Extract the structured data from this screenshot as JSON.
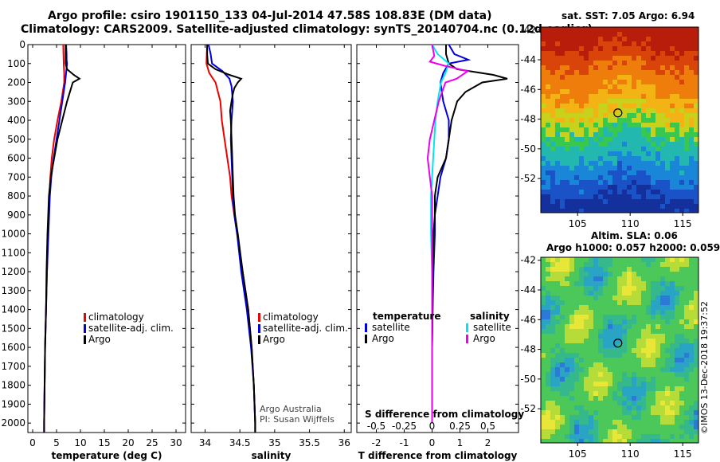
{
  "title_line1": "Argo profile: csiro 1901150_133 04-Jul-2014 47.58S 108.83E (DM data)",
  "title_line2": "Climatology: CARS2009. Satellite-adjusted climatology: synTS_20140704.nc (0.12d earlier)",
  "sst_title": "sat. SST: 7.05 Argo: 6.94",
  "sla_title": "Altim. SLA: 0.06",
  "sla_subtitle": "Argo h1000: 0.057 h2000: 0.059",
  "credit": "©IMOS 13-Dec-2018 19:37:52",
  "colors": {
    "climatology": "#ee0000",
    "satellite": "#0000dd",
    "argo": "#000000",
    "s_satellite": "#00e5ee",
    "s_argo": "#ee00ee"
  },
  "chart_data": [
    {
      "type": "line",
      "id": "temperature",
      "xlabel": "temperature (deg C)",
      "ylabel": "",
      "xlim": [
        -1,
        32
      ],
      "ylim": [
        2050,
        0
      ],
      "xticks": [
        0,
        5,
        10,
        15,
        20,
        25,
        30
      ],
      "yticks": [
        0,
        100,
        200,
        300,
        400,
        500,
        600,
        700,
        800,
        900,
        1000,
        1100,
        1200,
        1300,
        1400,
        1500,
        1600,
        1700,
        1800,
        1900,
        2000
      ],
      "legend": [
        "climatology",
        "satellite-adj. clim.",
        "Argo"
      ],
      "legend_position": "lower-right",
      "grid": false,
      "series": [
        {
          "name": "climatology",
          "color": "climatology",
          "depth": [
            0,
            100,
            150,
            200,
            300,
            400,
            500,
            600,
            700,
            800,
            1000,
            1200,
            1400,
            1600,
            1800,
            2000,
            2050
          ],
          "values": [
            6.4,
            6.5,
            6.6,
            6.6,
            6.0,
            5.2,
            4.5,
            4.0,
            3.7,
            3.5,
            3.2,
            3.0,
            2.8,
            2.6,
            2.5,
            2.4,
            2.4
          ]
        },
        {
          "name": "satellite-adj. clim.",
          "color": "satellite",
          "depth": [
            0,
            50,
            80,
            100,
            150,
            200,
            300,
            400,
            500,
            600,
            700,
            800,
            1000,
            1200,
            1400,
            1600,
            1800,
            2000,
            2050
          ],
          "values": [
            7.0,
            7.1,
            7.1,
            7.2,
            7.0,
            6.8,
            6.2,
            5.6,
            5.0,
            4.4,
            3.9,
            3.6,
            3.3,
            3.0,
            2.8,
            2.6,
            2.5,
            2.4,
            2.4
          ]
        },
        {
          "name": "Argo",
          "color": "argo",
          "depth": [
            0,
            50,
            100,
            130,
            160,
            180,
            200,
            250,
            300,
            400,
            500,
            600,
            700,
            800,
            1000,
            1200,
            1400,
            1600,
            1800,
            2000,
            2050
          ],
          "values": [
            6.9,
            6.9,
            6.9,
            7.2,
            8.6,
            9.8,
            8.4,
            7.8,
            7.2,
            6.2,
            5.2,
            4.5,
            3.8,
            3.4,
            3.1,
            2.9,
            2.8,
            2.6,
            2.5,
            2.4,
            2.4
          ]
        }
      ]
    },
    {
      "type": "line",
      "id": "salinity",
      "xlabel": "salinity",
      "ylabel": "",
      "xlim": [
        33.8,
        36.1
      ],
      "ylim": [
        2050,
        0
      ],
      "xticks": [
        34,
        34.5,
        35,
        35.5,
        36
      ],
      "legend": [
        "climatology",
        "satellite-adj. clim.",
        "Argo"
      ],
      "legend_position": "lower-right",
      "annotation": [
        "Argo Australia",
        "PI: Susan Wijffels"
      ],
      "grid": false,
      "series": [
        {
          "name": "climatology",
          "color": "climatology",
          "depth": [
            0,
            100,
            150,
            200,
            300,
            400,
            500,
            600,
            700,
            800,
            900,
            1000,
            1200,
            1400,
            1600,
            1800,
            2000,
            2050
          ],
          "values": [
            34.03,
            34.02,
            34.06,
            34.15,
            34.22,
            34.24,
            34.28,
            34.32,
            34.36,
            34.38,
            34.42,
            34.46,
            34.54,
            34.62,
            34.67,
            34.7,
            34.72,
            34.72
          ]
        },
        {
          "name": "satellite-adj. clim.",
          "color": "satellite",
          "depth": [
            0,
            50,
            100,
            140,
            180,
            220,
            300,
            400,
            500,
            600,
            700,
            800,
            900,
            1000,
            1200,
            1400,
            1600,
            1800,
            2000,
            2050
          ],
          "values": [
            34.05,
            34.08,
            34.1,
            34.25,
            34.35,
            34.38,
            34.4,
            34.38,
            34.37,
            34.38,
            34.39,
            34.4,
            34.42,
            34.46,
            34.52,
            34.6,
            34.66,
            34.7,
            34.72,
            34.72
          ]
        },
        {
          "name": "Argo",
          "color": "argo",
          "depth": [
            0,
            50,
            100,
            130,
            160,
            180,
            200,
            230,
            260,
            300,
            350,
            400,
            500,
            600,
            700,
            800,
            900,
            1000,
            1200,
            1400,
            1600,
            1800,
            2000,
            2050
          ],
          "values": [
            34.03,
            34.03,
            34.04,
            34.15,
            34.35,
            34.52,
            34.47,
            34.42,
            34.4,
            34.38,
            34.36,
            34.37,
            34.38,
            34.39,
            34.4,
            34.41,
            34.43,
            34.47,
            34.54,
            34.62,
            34.67,
            34.7,
            34.72,
            34.72
          ]
        }
      ]
    },
    {
      "type": "line",
      "id": "difference",
      "xlabel": "T difference from climatology",
      "ylabel": "",
      "xlim": [
        -2.7,
        3.1
      ],
      "ylim": [
        2050,
        0
      ],
      "xticks": [
        -2,
        -1,
        0,
        1,
        2
      ],
      "secondary_xlabel": "S difference from climatology",
      "secondary_xticks": [
        "-0.5",
        "-0.25",
        "0",
        "0.25",
        "0.5"
      ],
      "legend_temperature": {
        "header": "temperature",
        "items": [
          "satellite",
          "Argo"
        ]
      },
      "legend_salinity": {
        "header": "salinity",
        "items": [
          "satellite",
          "Argo"
        ]
      },
      "grid": false,
      "series": [
        {
          "name": "T satellite",
          "color": "satellite",
          "depth": [
            0,
            50,
            80,
            100,
            150,
            200,
            300,
            400,
            500,
            600,
            700,
            800,
            900,
            1000,
            1200,
            1400,
            1600,
            1800,
            2000
          ],
          "values": [
            0.6,
            0.8,
            1.3,
            0.6,
            0.4,
            0.3,
            0.4,
            0.6,
            0.6,
            0.5,
            0.3,
            0.2,
            0.1,
            0.1,
            0.05,
            0.02,
            0.0,
            0.0,
            0.0
          ]
        },
        {
          "name": "T Argo",
          "color": "argo",
          "depth": [
            0,
            50,
            100,
            130,
            160,
            180,
            200,
            250,
            300,
            400,
            500,
            600,
            700,
            800,
            900,
            1000,
            1200,
            1400,
            1600,
            1800,
            2000
          ],
          "values": [
            0.5,
            0.5,
            0.6,
            0.9,
            2.2,
            2.7,
            1.8,
            1.2,
            0.9,
            0.7,
            0.6,
            0.5,
            0.2,
            0.1,
            0.1,
            0.05,
            0.03,
            0.02,
            0.0,
            0.0,
            0.0
          ]
        },
        {
          "name": "S satellite",
          "color": "s_satellite",
          "depth": [
            0,
            50,
            100,
            150,
            200,
            300,
            400,
            500,
            600,
            700,
            800,
            1000,
            1200,
            1400,
            1600,
            1800,
            2000
          ],
          "values": [
            0.0,
            0.05,
            0.15,
            0.12,
            0.08,
            0.05,
            0.03,
            0.02,
            0.01,
            0.0,
            -0.01,
            -0.01,
            0.0,
            0.0,
            0.0,
            0.0,
            0.0
          ]
        },
        {
          "name": "S Argo",
          "color": "s_argo",
          "depth": [
            0,
            60,
            90,
            110,
            140,
            180,
            200,
            300,
            400,
            500,
            600,
            700,
            800,
            1000,
            1200,
            1400,
            1600,
            1800,
            2000
          ],
          "values": [
            0.0,
            0.02,
            -0.02,
            0.1,
            0.32,
            0.22,
            0.12,
            0.06,
            0.02,
            -0.02,
            -0.04,
            -0.02,
            0.0,
            0.0,
            0.0,
            0.0,
            0.0,
            0.0,
            0.0
          ]
        }
      ]
    },
    {
      "type": "heatmap",
      "id": "sst_map",
      "xlim": [
        101.5,
        116.5
      ],
      "ylim": [
        -54.3,
        -41.8
      ],
      "xticks": [
        105,
        110,
        115
      ],
      "yticks": [
        -42,
        -44,
        -46,
        -48,
        -50,
        -52
      ],
      "marker": {
        "lon": 108.83,
        "lat": -47.58
      }
    },
    {
      "type": "heatmap",
      "id": "sla_map",
      "xlim": [
        101.5,
        116.5
      ],
      "ylim": [
        -54.3,
        -41.8
      ],
      "xticks": [
        105,
        110,
        115
      ],
      "yticks": [
        -42,
        -44,
        -46,
        -48,
        -50,
        -52
      ],
      "marker": {
        "lon": 108.83,
        "lat": -47.58
      }
    }
  ]
}
